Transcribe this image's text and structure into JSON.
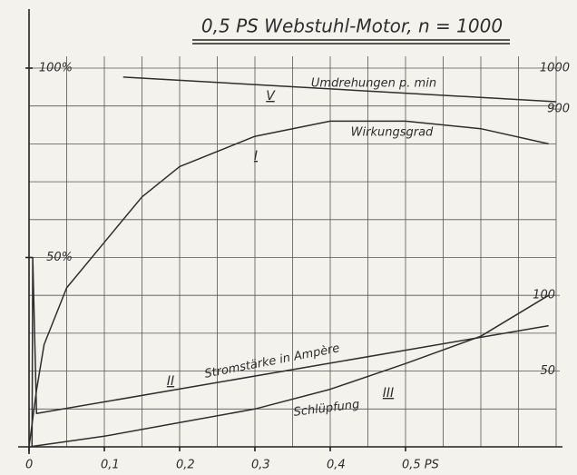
{
  "chart_data": {
    "type": "line",
    "title": "0,5 PS Webstuhl-Motor, n = 1000",
    "xlim": [
      0,
      0.7
    ],
    "xticks": [
      {
        "value": 0,
        "label": "0"
      },
      {
        "value": 0.1,
        "label": "0,1"
      },
      {
        "value": 0.2,
        "label": "0,2"
      },
      {
        "value": 0.3,
        "label": "0,3"
      },
      {
        "value": 0.4,
        "label": "0,4"
      },
      {
        "value": 0.5,
        "label": "0,5 PS"
      }
    ],
    "ylim": [
      0,
      100
    ],
    "yticks": [
      {
        "value": 50,
        "label": "50%"
      },
      {
        "value": 100,
        "label": "100%"
      }
    ],
    "y2lim": [
      75,
      1000
    ],
    "y2ticks": [
      900,
      1000
    ],
    "y3lim": [
      0,
      250
    ],
    "y3ticks": [
      50,
      100
    ],
    "x_gridlines": [
      0.05,
      0.1,
      0.15,
      0.2,
      0.25,
      0.3,
      0.35,
      0.4,
      0.45,
      0.5,
      0.55,
      0.6,
      0.65,
      0.7
    ],
    "y_gridlines": [
      10,
      20,
      30,
      40,
      50,
      60,
      70,
      80,
      90,
      100
    ],
    "color": "#2e2e2e",
    "series": [
      {
        "name": "Umdrehungen p. min",
        "label": "V",
        "axis": "y2",
        "x": [
          0.125,
          0.7
        ],
        "values": [
          978,
          918
        ]
      },
      {
        "name": "Wirkungsgrad",
        "label": "I",
        "axis": "y",
        "x": [
          0,
          0.01,
          0.02,
          0.05,
          0.1,
          0.15,
          0.2,
          0.3,
          0.4,
          0.5,
          0.6,
          0.69
        ],
        "values": [
          0,
          15,
          27,
          42,
          54,
          66,
          74,
          82,
          86,
          86,
          84,
          80
        ]
      },
      {
        "name": "Stromstärke in Ampère",
        "label": "II",
        "axis": "y3",
        "x": [
          0.004,
          0.005,
          0.01,
          0.69
        ],
        "values": [
          0,
          125,
          22,
          80
        ]
      },
      {
        "name": "Schlüpfung",
        "label": "III",
        "axis": "y3",
        "x": [
          0,
          0.1,
          0.2,
          0.3,
          0.4,
          0.5,
          0.6,
          0.69
        ],
        "values": [
          0,
          7,
          16,
          25,
          38,
          55,
          73,
          100
        ]
      }
    ]
  }
}
